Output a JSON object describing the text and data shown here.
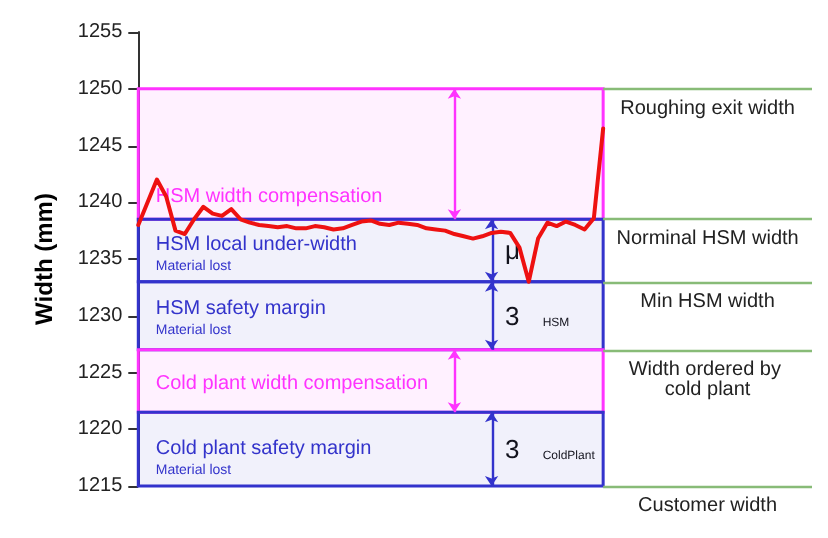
{
  "chart_data": {
    "type": "line",
    "ylabel": "Width (mm)",
    "categories": [
      null,
      null,
      null,
      null,
      null,
      null,
      null,
      null,
      null,
      null,
      null,
      null,
      null,
      null,
      null,
      null,
      null,
      null,
      null,
      null,
      null,
      null,
      null,
      null,
      null,
      null,
      null,
      null,
      null,
      null,
      null,
      null,
      null,
      null,
      null,
      null,
      null,
      null,
      null,
      null,
      null,
      null,
      null,
      null,
      null,
      null,
      null,
      null,
      null,
      null,
      null
    ],
    "series": [
      {
        "color": "#ee1111",
        "values": [
          1238,
          1240,
          1242,
          1240.5,
          1237.5,
          1237.2,
          1238.5,
          1239.6,
          1239,
          1238.8,
          1239.4,
          1238.5,
          1238.2,
          1238,
          1237.9,
          1237.8,
          1237.9,
          1237.7,
          1237.7,
          1237.9,
          1237.8,
          1237.6,
          1237.7,
          1238,
          1238.3,
          1238.4,
          1238.1,
          1238,
          1238.2,
          1238.1,
          1238,
          1237.7,
          1237.6,
          1237.5,
          1237.2,
          1237,
          1236.8,
          1237,
          1237.3,
          1237.4,
          1237.3,
          1236,
          1233,
          1236.8,
          1238.2,
          1237.9,
          1238.3,
          1238,
          1237.6,
          1238.6,
          1246.5
        ]
      }
    ],
    "ylim": [
      1215,
      1255
    ],
    "yticks": [
      1215,
      1220,
      1225,
      1230,
      1235,
      1240,
      1245,
      1250,
      1255
    ],
    "grid": false,
    "marker": "none",
    "line_style": "solid",
    "tick_labels": "y",
    "bands": [
      {
        "axis": "y",
        "from": 1238.5,
        "to": 1250,
        "label": "HSM width compensation",
        "color": "#ff33ff"
      },
      {
        "axis": "y",
        "from": 1233,
        "to": 1238.5,
        "label": "HSM local under-width",
        "color": "#3333cc"
      },
      {
        "axis": "y",
        "from": 1227,
        "to": 1233,
        "label": "HSM safety margin",
        "color": "#3333cc"
      },
      {
        "axis": "y",
        "from": 1221.5,
        "to": 1227,
        "label": "Cold plant width compensation",
        "color": "#ff33ff"
      },
      {
        "axis": "y",
        "from": 1215,
        "to": 1221.5,
        "label": "Cold plant safety margin",
        "color": "#3333cc"
      }
    ],
    "ref_lines": [
      {
        "axis": "y",
        "value": 1250,
        "label": "Roughing exit width",
        "color": "#88bb77"
      },
      {
        "axis": "y",
        "value": 1238.5,
        "label": "Norminal HSM width",
        "color": "#88bb77"
      },
      {
        "axis": "y",
        "value": 1233,
        "label": "Min HSM width",
        "color": "#88bb77"
      },
      {
        "axis": "y",
        "value": 1227,
        "label": "Width ordered by cold plant",
        "color": "#88bb77"
      },
      {
        "axis": "y",
        "value": 1215,
        "label": "Customer width",
        "color": "#88bb77"
      }
    ],
    "annotations": [
      "Material lost",
      "Material lost",
      "Material lost",
      "μ",
      "3 $_{HSM}$",
      "3 $_{ColdPlant}$"
    ]
  }
}
